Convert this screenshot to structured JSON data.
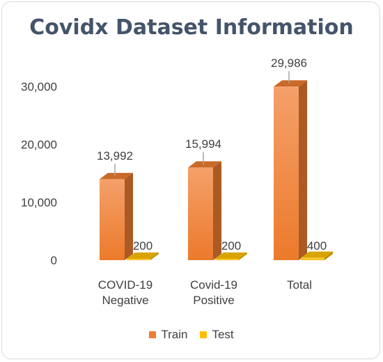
{
  "chart_data": {
    "type": "bar",
    "title": "Covidx Dataset Information",
    "categories": [
      [
        "COVID-19",
        "Negative"
      ],
      [
        "Covid-19",
        "Positive"
      ],
      [
        "Total"
      ]
    ],
    "series": [
      {
        "name": "Train",
        "values": [
          13992,
          15994,
          29986
        ],
        "labels": [
          "13,992",
          "15,994",
          "29,986"
        ],
        "color": "#ed7d31"
      },
      {
        "name": "Test",
        "values": [
          200,
          200,
          400
        ],
        "labels": [
          "200",
          "200",
          "400"
        ],
        "color": "#ffc000"
      }
    ],
    "ylim": [
      0,
      30000
    ],
    "yticks": [
      0,
      10000,
      20000,
      30000
    ],
    "ytick_labels": [
      "0",
      "10,000",
      "20,000",
      "30,000"
    ],
    "legend_position": "bottom",
    "grid": false
  }
}
